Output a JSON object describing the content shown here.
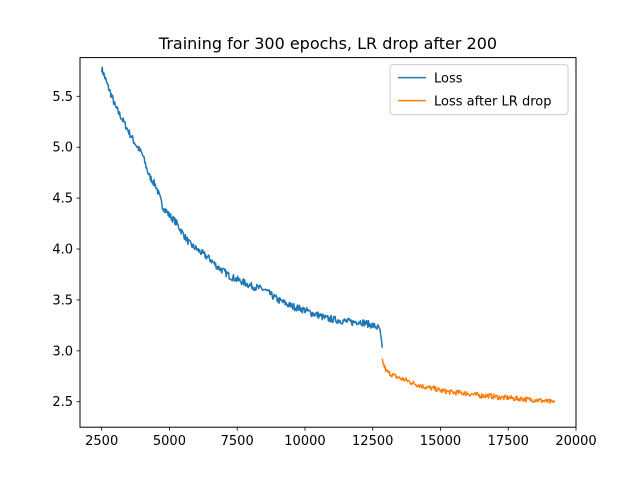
{
  "chart_data": {
    "type": "line",
    "title": "Training for 300 epochs, LR drop after 200",
    "xlabel": "",
    "ylabel": "",
    "xlim": [
      1700,
      20000
    ],
    "ylim": [
      2.25,
      5.88
    ],
    "xticks": [
      2500,
      5000,
      7500,
      10000,
      12500,
      15000,
      17500,
      20000
    ],
    "yticks": [
      2.5,
      3.0,
      3.5,
      4.0,
      4.5,
      5.0,
      5.5
    ],
    "grid": false,
    "legend": {
      "placement": "top-right"
    },
    "series": [
      {
        "name": "Loss",
        "color": "#1f77b4",
        "x": [
          2500,
          2600,
          2700,
          2800,
          2900,
          3000,
          3250,
          3500,
          3750,
          4000,
          4250,
          4500,
          4750,
          5000,
          5250,
          5500,
          5750,
          6000,
          6250,
          6500,
          6750,
          7000,
          7250,
          7500,
          7750,
          8000,
          8250,
          8500,
          8750,
          9000,
          9250,
          9500,
          9750,
          10000,
          10250,
          10500,
          10750,
          11000,
          11250,
          11500,
          11750,
          12000,
          12250,
          12500,
          12750,
          12850
        ],
        "y": [
          5.77,
          5.7,
          5.62,
          5.55,
          5.48,
          5.4,
          5.28,
          5.15,
          5.03,
          4.93,
          4.72,
          4.62,
          4.42,
          4.33,
          4.26,
          4.15,
          4.05,
          4.0,
          3.95,
          3.9,
          3.83,
          3.78,
          3.73,
          3.7,
          3.67,
          3.64,
          3.62,
          3.6,
          3.55,
          3.5,
          3.47,
          3.44,
          3.42,
          3.4,
          3.37,
          3.35,
          3.32,
          3.31,
          3.3,
          3.29,
          3.28,
          3.29,
          3.27,
          3.25,
          3.22,
          3.03
        ]
      },
      {
        "name": "Loss after LR drop",
        "color": "#ff7f0e",
        "x": [
          12850,
          13000,
          13250,
          13500,
          13750,
          14000,
          14250,
          14500,
          14750,
          15000,
          15250,
          15500,
          15750,
          16000,
          16250,
          16500,
          16750,
          17000,
          17250,
          17500,
          17750,
          18000,
          18250,
          18500,
          18750,
          19000,
          19200
        ],
        "y": [
          2.9,
          2.8,
          2.76,
          2.73,
          2.71,
          2.68,
          2.66,
          2.64,
          2.63,
          2.61,
          2.6,
          2.59,
          2.59,
          2.58,
          2.57,
          2.56,
          2.56,
          2.55,
          2.54,
          2.54,
          2.53,
          2.53,
          2.52,
          2.52,
          2.51,
          2.5,
          2.49
        ]
      }
    ]
  }
}
